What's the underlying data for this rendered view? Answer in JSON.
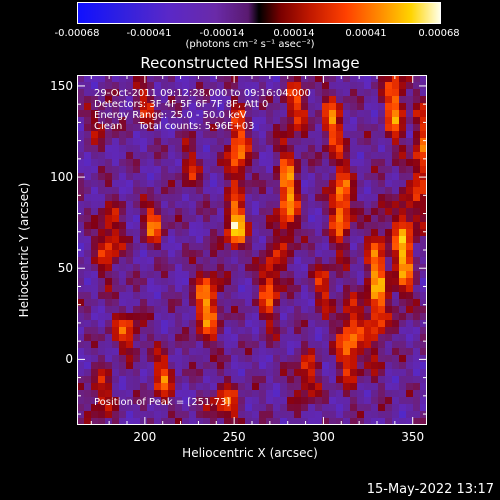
{
  "colorbar": {
    "ticks": [
      "-0.00068",
      "-0.00041",
      "-0.00014",
      "0.00014",
      "0.00041",
      "0.00068"
    ],
    "units": "(photons cm⁻² s⁻¹ asec⁻²)"
  },
  "info": {
    "line1": "29-Oct-2011 09:12:28.000 to 09:16:04.000",
    "line2": "Detectors: 3F 4F 5F 6F 7F 8F, Att 0",
    "line3": "Energy Range: 25.0 - 50.0 keV",
    "line4": "Clean     Total counts: 5.96E+03",
    "peak": "Position of Peak = [251,73]"
  },
  "timestamp": "15-May-2022 13:17",
  "chart_data": {
    "type": "heatmap",
    "title": "Reconstructed RHESSI Image",
    "xlabel": "Heliocentric X (arcsec)",
    "ylabel": "Heliocentric Y (arcsec)",
    "xlim": [
      162,
      358
    ],
    "ylim": [
      -36,
      156
    ],
    "xticks": [
      200,
      250,
      300,
      350
    ],
    "yticks": [
      0,
      50,
      100,
      150
    ],
    "colorbar_range": [
      -0.00068,
      0.00068
    ],
    "peak": [
      251,
      73
    ],
    "sources": [
      {
        "x": 251,
        "y": 73,
        "intensity": 1.0,
        "sx": 4,
        "sy": 9
      },
      {
        "x": 252,
        "y": 115,
        "intensity": 0.75,
        "sx": 4,
        "sy": 16
      },
      {
        "x": 235,
        "y": 30,
        "intensity": 0.75,
        "sx": 5,
        "sy": 15
      },
      {
        "x": 280,
        "y": 90,
        "intensity": 0.8,
        "sx": 4,
        "sy": 20
      },
      {
        "x": 270,
        "y": 40,
        "intensity": 0.65,
        "sx": 4,
        "sy": 15
      },
      {
        "x": 310,
        "y": 85,
        "intensity": 0.85,
        "sx": 4,
        "sy": 16
      },
      {
        "x": 315,
        "y": 10,
        "intensity": 0.75,
        "sx": 5,
        "sy": 15
      },
      {
        "x": 305,
        "y": 130,
        "intensity": 0.65,
        "sx": 4,
        "sy": 12
      },
      {
        "x": 330,
        "y": 40,
        "intensity": 0.8,
        "sx": 4,
        "sy": 25
      },
      {
        "x": 340,
        "y": 140,
        "intensity": 0.75,
        "sx": 4,
        "sy": 15
      },
      {
        "x": 345,
        "y": 60,
        "intensity": 0.85,
        "sx": 4,
        "sy": 20
      },
      {
        "x": 355,
        "y": 110,
        "intensity": 0.7,
        "sx": 3,
        "sy": 20
      },
      {
        "x": 180,
        "y": 65,
        "intensity": 0.55,
        "sx": 5,
        "sy": 14
      },
      {
        "x": 190,
        "y": 15,
        "intensity": 0.55,
        "sx": 6,
        "sy": 8
      },
      {
        "x": 205,
        "y": 75,
        "intensity": 0.7,
        "sx": 4,
        "sy": 8
      },
      {
        "x": 210,
        "y": -10,
        "intensity": 0.6,
        "sx": 4,
        "sy": 10
      },
      {
        "x": 175,
        "y": -20,
        "intensity": 0.45,
        "sx": 5,
        "sy": 10
      },
      {
        "x": 200,
        "y": 140,
        "intensity": 0.4,
        "sx": 5,
        "sy": 8
      },
      {
        "x": 245,
        "y": -25,
        "intensity": 0.55,
        "sx": 6,
        "sy": 8
      },
      {
        "x": 290,
        "y": -10,
        "intensity": 0.5,
        "sx": 5,
        "sy": 10
      },
      {
        "x": 285,
        "y": 140,
        "intensity": 0.5,
        "sx": 5,
        "sy": 10
      },
      {
        "x": 175,
        "y": 130,
        "intensity": 0.35,
        "sx": 5,
        "sy": 8
      },
      {
        "x": 225,
        "y": 105,
        "intensity": 0.4,
        "sx": 4,
        "sy": 10
      },
      {
        "x": 300,
        "y": 40,
        "intensity": 0.45,
        "sx": 4,
        "sy": 10
      }
    ]
  }
}
